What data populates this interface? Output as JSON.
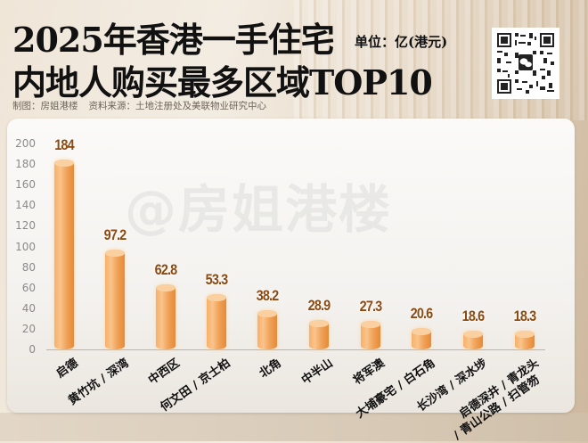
{
  "header": {
    "title_line1": "2025年香港一手住宅",
    "title_line2": "内地人购买最多区域TOP10",
    "unit": "单位：亿(港元)",
    "credit_maker": "制图：房姐港楼",
    "credit_source": "资料来源：土地注册处及美联物业研究中心",
    "qr_icon": "wechat-qr-code"
  },
  "watermark": "@房姐港楼",
  "colors": {
    "bar": "#f0a055",
    "bar_top": "#fbd0a0",
    "value_label": "#8b4a12",
    "panel": "#f7f5f2"
  },
  "chart_data": {
    "type": "bar",
    "title": "2025年香港一手住宅内地人购买最多区域TOP10",
    "ylabel": "亿(港元)",
    "xlabel": "",
    "ylim": [
      0,
      200
    ],
    "yticks": [
      "200",
      "180",
      "160",
      "140",
      "120",
      "100",
      "80",
      "60",
      "40",
      "20",
      "0"
    ],
    "grid": false,
    "legend": null,
    "categories": [
      "启德",
      "黄竹坑 / 深湾",
      "中西区",
      "何文田 / 京士柏",
      "北角",
      "中半山",
      "将军澳",
      "大埔豪宅 / 白石角",
      "长沙湾 / 深水埗",
      "启德深井 / 青龙头 / 青山公路 / 扫管笏"
    ],
    "category_lines": [
      [
        "启德"
      ],
      [
        "黄竹坑 / 深湾"
      ],
      [
        "中西区"
      ],
      [
        "何文田 / 京士柏"
      ],
      [
        "北角"
      ],
      [
        "中半山"
      ],
      [
        "将军澳"
      ],
      [
        "大埔豪宅 / 白石角"
      ],
      [
        "长沙湾 / 深水埗"
      ],
      [
        "启德深井 / 青龙头",
        "/ 青山公路 / 扫管笏"
      ]
    ],
    "values": [
      184,
      97.2,
      62.8,
      53.3,
      38.2,
      28.9,
      27.3,
      20.6,
      18.6,
      18.3
    ],
    "value_labels": [
      "184",
      "97.2",
      "62.8",
      "53.3",
      "38.2",
      "28.9",
      "27.3",
      "20.6",
      "18.6",
      "18.3"
    ]
  }
}
